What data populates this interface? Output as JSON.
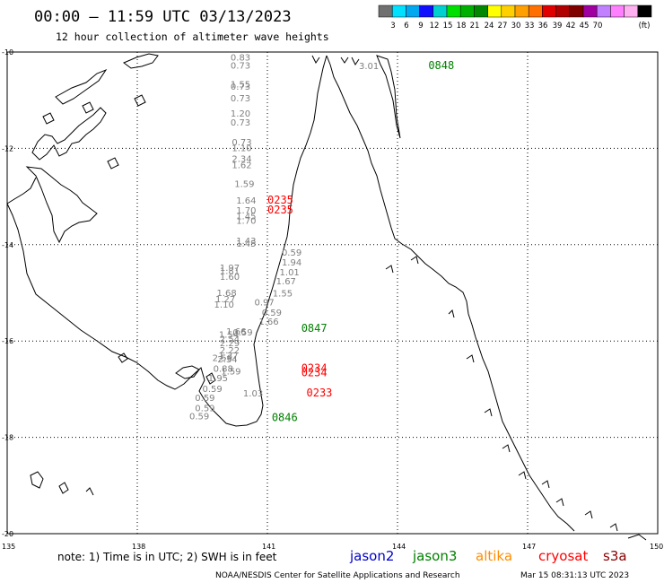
{
  "header": {
    "title": "00:00 – 11:59 UTC 03/13/2023",
    "subtitle": "12 hour collection of altimeter wave heights"
  },
  "color_scale": {
    "colors": [
      "#707070",
      "#00e0ff",
      "#00a8f0",
      "#1010ff",
      "#00d0d0",
      "#00e000",
      "#00b000",
      "#008800",
      "#ffff00",
      "#ffd000",
      "#ffa000",
      "#ff7000",
      "#e00000",
      "#b00000",
      "#800000",
      "#a000a0",
      "#c080ff",
      "#ff80ff",
      "#ffb0f0",
      "#000000"
    ],
    "labels": [
      "3",
      "6",
      "9",
      "12",
      "15",
      "18",
      "21",
      "24",
      "27",
      "30",
      "33",
      "36",
      "39",
      "42",
      "45",
      "70"
    ],
    "unit_label": "(ft)"
  },
  "axes": {
    "lat_labels": [
      "-10",
      "-12",
      "-14",
      "-16",
      "-18",
      "-20"
    ],
    "lon_labels": [
      "135",
      "138",
      "141",
      "144",
      "147",
      "150"
    ]
  },
  "wave_heights": [
    {
      "text": "0.83",
      "lon": 140.15,
      "lat": -10.1
    },
    {
      "text": "0.73",
      "lon": 140.15,
      "lat": -10.27
    },
    {
      "text": "1.55",
      "lon": 140.15,
      "lat": -10.66
    },
    {
      "text": "0.73",
      "lon": 140.15,
      "lat": -10.71
    },
    {
      "text": "0.73",
      "lon": 140.15,
      "lat": -10.95
    },
    {
      "text": "1.20",
      "lon": 140.15,
      "lat": -11.27
    },
    {
      "text": "0.73",
      "lon": 140.15,
      "lat": -11.45
    },
    {
      "text": "0.73",
      "lon": 140.18,
      "lat": -11.86
    },
    {
      "text": "1.10",
      "lon": 140.18,
      "lat": -11.98
    },
    {
      "text": "2.34",
      "lon": 140.18,
      "lat": -12.21
    },
    {
      "text": "1.62",
      "lon": 140.18,
      "lat": -12.34
    },
    {
      "text": "1.59",
      "lon": 140.24,
      "lat": -12.73
    },
    {
      "text": "1.64",
      "lon": 140.28,
      "lat": -13.07
    },
    {
      "text": "1.70",
      "lon": 140.28,
      "lat": -13.28
    },
    {
      "text": "1.45",
      "lon": 140.28,
      "lat": -13.4
    },
    {
      "text": "1.70",
      "lon": 140.28,
      "lat": -13.49
    },
    {
      "text": "1.43",
      "lon": 140.28,
      "lat": -13.91
    },
    {
      "text": "1.45",
      "lon": 140.28,
      "lat": -13.97
    },
    {
      "text": "0.59",
      "lon": 141.33,
      "lat": -14.15
    },
    {
      "text": "1.94",
      "lon": 141.33,
      "lat": -14.36
    },
    {
      "text": "1.97",
      "lon": 139.9,
      "lat": -14.47
    },
    {
      "text": "1.01",
      "lon": 141.28,
      "lat": -14.56
    },
    {
      "text": "1.81",
      "lon": 139.9,
      "lat": -14.53
    },
    {
      "text": "1.60",
      "lon": 139.9,
      "lat": -14.66
    },
    {
      "text": "1.67",
      "lon": 141.2,
      "lat": -14.75
    },
    {
      "text": "1.68",
      "lon": 139.83,
      "lat": -14.99
    },
    {
      "text": "1.55",
      "lon": 141.12,
      "lat": -15.0
    },
    {
      "text": "1.27",
      "lon": 139.8,
      "lat": -15.12
    },
    {
      "text": "0.97",
      "lon": 140.7,
      "lat": -15.19
    },
    {
      "text": "1.10",
      "lon": 139.77,
      "lat": -15.23
    },
    {
      "text": "0.59",
      "lon": 140.87,
      "lat": -15.4
    },
    {
      "text": "1.66",
      "lon": 140.8,
      "lat": -15.59
    },
    {
      "text": "1.66",
      "lon": 140.05,
      "lat": -15.79
    },
    {
      "text": "0.59",
      "lon": 140.2,
      "lat": -15.81
    },
    {
      "text": "1.54",
      "lon": 139.88,
      "lat": -15.86
    },
    {
      "text": "2.54",
      "lon": 139.9,
      "lat": -15.95
    },
    {
      "text": "2.29",
      "lon": 139.9,
      "lat": -16.03
    },
    {
      "text": "2.22",
      "lon": 139.9,
      "lat": -16.18
    },
    {
      "text": "1.37",
      "lon": 139.87,
      "lat": -16.29
    },
    {
      "text": "2.56",
      "lon": 139.73,
      "lat": -16.34
    },
    {
      "text": "2.34",
      "lon": 139.85,
      "lat": -16.37
    },
    {
      "text": "0.88",
      "lon": 139.75,
      "lat": -16.56
    },
    {
      "text": "1.59",
      "lon": 139.93,
      "lat": -16.62
    },
    {
      "text": "1.95",
      "lon": 139.63,
      "lat": -16.76
    },
    {
      "text": "0.59",
      "lon": 139.5,
      "lat": -16.98
    },
    {
      "text": "1.03",
      "lon": 140.44,
      "lat": -17.08
    },
    {
      "text": "0.59",
      "lon": 139.33,
      "lat": -17.17
    },
    {
      "text": "0.59",
      "lon": 139.33,
      "lat": -17.38
    },
    {
      "text": "0.59",
      "lon": 139.2,
      "lat": -17.55
    },
    {
      "text": "3.01",
      "lon": 143.11,
      "lat": -10.28
    }
  ],
  "pass_labels": [
    {
      "text": "0848",
      "mission": "jason3",
      "lon": 144.71,
      "lat": -10.28
    },
    {
      "text": "0235",
      "mission": "cryosat",
      "lon": 141.0,
      "lat": -13.07
    },
    {
      "text": "0235",
      "mission": "cryosat",
      "lon": 141.0,
      "lat": -13.28
    },
    {
      "text": "0847",
      "mission": "jason3",
      "lon": 141.78,
      "lat": -15.74
    },
    {
      "text": "0234",
      "mission": "cryosat",
      "lon": 141.78,
      "lat": -16.56
    },
    {
      "text": "0234",
      "mission": "cryosat",
      "lon": 141.78,
      "lat": -16.66
    },
    {
      "text": "0233",
      "mission": "cryosat",
      "lon": 141.9,
      "lat": -17.08
    },
    {
      "text": "0846",
      "mission": "jason3",
      "lon": 141.1,
      "lat": -17.59
    }
  ],
  "missions": [
    {
      "key": "jason2",
      "name": "jason2",
      "color": "#0000cc"
    },
    {
      "key": "jason3",
      "name": "jason3",
      "color": "#008000"
    },
    {
      "key": "altika",
      "name": "altika",
      "color": "#ff8c00"
    },
    {
      "key": "cryosat",
      "name": "cryosat",
      "color": "#ff0000"
    },
    {
      "key": "s3a",
      "name": "s3a",
      "color": "#8b0000"
    }
  ],
  "swh_colors": {
    "default": "#808080",
    "highlight": "#00e0e0"
  },
  "note": "note: 1) Time is in UTC; 2) SWH is in feet",
  "footer": {
    "agency": "NOAA/NESDIS Center for Satellite Applications and Research",
    "timestamp": "Mar 15 08:31:13 UTC 2023"
  }
}
